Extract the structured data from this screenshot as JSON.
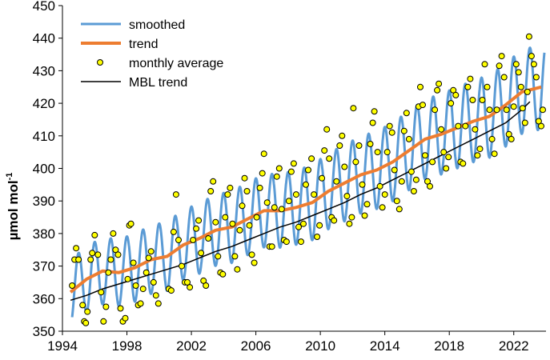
{
  "chart_data": {
    "type": "line",
    "title": "",
    "xlabel": "",
    "ylabel": "µmol mol",
    "ylabel_superscript": "-1",
    "xlim": [
      1994,
      2024
    ],
    "ylim": [
      350,
      450
    ],
    "xticks": [
      1994,
      1998,
      2002,
      2006,
      2010,
      2014,
      2018,
      2022
    ],
    "yticks": [
      350,
      360,
      370,
      380,
      390,
      400,
      410,
      420,
      430,
      440,
      450
    ],
    "grid": false,
    "legend_position": "top-left",
    "legend": [
      {
        "key": "smoothed",
        "label": "smoothed",
        "color": "#5b9bd5",
        "style": "line"
      },
      {
        "key": "trend",
        "label": "trend",
        "color": "#ed7d31",
        "style": "line"
      },
      {
        "key": "monthly",
        "label": "monthly average",
        "color": "#ffff00",
        "style": "marker"
      },
      {
        "key": "mbl",
        "label": "MBL trend",
        "color": "#000000",
        "style": "line"
      }
    ],
    "series": [
      {
        "name": "trend",
        "color": "#ed7d31",
        "x": [
          1994.5,
          1995.5,
          1996.5,
          1997.5,
          1998.5,
          1999.5,
          2000.5,
          2001.5,
          2002.5,
          2003.5,
          2004.5,
          2005.5,
          2006.5,
          2007.5,
          2008.5,
          2009.5,
          2010.5,
          2011.5,
          2012.5,
          2013.5,
          2014.5,
          2015.5,
          2016.5,
          2017.5,
          2018.5,
          2019.5,
          2020.5,
          2021.5,
          2022.5,
          2023.7
        ],
        "y": [
          362,
          366,
          368.5,
          368,
          369.5,
          372,
          373,
          376.5,
          378.5,
          381,
          382,
          384.5,
          387,
          387,
          388,
          389.5,
          393,
          395.5,
          398,
          399.5,
          402,
          405.5,
          409,
          410.5,
          412.5,
          414.5,
          416,
          419.5,
          423.5,
          425
        ]
      },
      {
        "name": "MBL trend",
        "color": "#000000",
        "x": [
          1994.5,
          1995.5,
          1996.5,
          1997.5,
          1998.5,
          1999.5,
          2000.5,
          2001.5,
          2002.5,
          2003.5,
          2004.5,
          2005.5,
          2006.5,
          2007.5,
          2008.5,
          2009.5,
          2010.5,
          2011.5,
          2012.5,
          2013.5,
          2014.5,
          2015.5,
          2016.5,
          2017.5,
          2018.5,
          2019.5,
          2020.5,
          2021.5,
          2022.5,
          2023.0
        ],
        "y": [
          359.5,
          361,
          363,
          364.5,
          366,
          367.5,
          369,
          370.5,
          372.5,
          374.5,
          376,
          378,
          380,
          382,
          383.5,
          385.5,
          387.5,
          389.5,
          392,
          394,
          396.5,
          399,
          401.5,
          404,
          406.5,
          409,
          411.5,
          414,
          418,
          420.5
        ]
      },
      {
        "name": "smoothed",
        "color": "#5b9bd5",
        "model": "trend + seasonal cycle",
        "x_range": [
          1994.6,
          2023.9
        ],
        "seasonal_amplitude_early": 10,
        "seasonal_amplitude_late": 13
      },
      {
        "name": "monthly average",
        "color": "#ffff00",
        "points": [
          [
            1994.6,
            364
          ],
          [
            1994.75,
            372
          ],
          [
            1994.85,
            375.5
          ],
          [
            1995.0,
            372
          ],
          [
            1995.25,
            358
          ],
          [
            1995.35,
            353
          ],
          [
            1995.45,
            352.5
          ],
          [
            1995.55,
            356
          ],
          [
            1995.75,
            372
          ],
          [
            1995.85,
            374
          ],
          [
            1996.0,
            379.5
          ],
          [
            1996.2,
            373.5
          ],
          [
            1996.4,
            362
          ],
          [
            1996.55,
            353
          ],
          [
            1996.7,
            357.5
          ],
          [
            1996.85,
            368
          ],
          [
            1997.0,
            372
          ],
          [
            1997.15,
            380
          ],
          [
            1997.3,
            375
          ],
          [
            1997.45,
            373.5
          ],
          [
            1997.6,
            357
          ],
          [
            1997.75,
            353
          ],
          [
            1997.9,
            354
          ],
          [
            1998.05,
            366
          ],
          [
            1998.15,
            382.5
          ],
          [
            1998.25,
            383
          ],
          [
            1998.4,
            371
          ],
          [
            1998.55,
            364
          ],
          [
            1998.7,
            358
          ],
          [
            1998.85,
            358.5
          ],
          [
            1999.0,
            363
          ],
          [
            1999.2,
            368
          ],
          [
            1999.35,
            372.5
          ],
          [
            1999.5,
            374.5
          ],
          [
            1999.65,
            365
          ],
          [
            1999.8,
            361
          ],
          [
            1999.95,
            358.5
          ],
          [
            2000.6,
            363
          ],
          [
            2000.75,
            362.5
          ],
          [
            2000.9,
            380.5
          ],
          [
            2001.05,
            392
          ],
          [
            2001.2,
            378
          ],
          [
            2001.4,
            370
          ],
          [
            2001.6,
            365
          ],
          [
            2001.75,
            365
          ],
          [
            2001.9,
            363.5
          ],
          [
            2002.1,
            378
          ],
          [
            2002.3,
            381.5
          ],
          [
            2002.45,
            384
          ],
          [
            2002.6,
            374
          ],
          [
            2002.75,
            365.5
          ],
          [
            2002.9,
            364
          ],
          [
            2003.05,
            378.5
          ],
          [
            2003.2,
            393
          ],
          [
            2003.35,
            396
          ],
          [
            2003.5,
            383.5
          ],
          [
            2003.65,
            373
          ],
          [
            2003.8,
            368
          ],
          [
            2003.95,
            367.5
          ],
          [
            2004.1,
            385
          ],
          [
            2004.25,
            392
          ],
          [
            2004.4,
            394
          ],
          [
            2004.55,
            383
          ],
          [
            2004.7,
            373
          ],
          [
            2004.85,
            369
          ],
          [
            2005.0,
            381
          ],
          [
            2005.15,
            388.5
          ],
          [
            2005.3,
            397
          ],
          [
            2005.45,
            393
          ],
          [
            2005.6,
            382.5
          ],
          [
            2005.75,
            373.5
          ],
          [
            2005.9,
            371
          ],
          [
            2006.05,
            385
          ],
          [
            2006.25,
            394
          ],
          [
            2006.4,
            398.5
          ],
          [
            2006.5,
            404.5
          ],
          [
            2006.7,
            389.5
          ],
          [
            2006.85,
            376
          ],
          [
            2007.0,
            376
          ],
          [
            2007.15,
            388
          ],
          [
            2007.3,
            397.5
          ],
          [
            2007.45,
            400
          ],
          [
            2007.6,
            387.5
          ],
          [
            2007.75,
            378
          ],
          [
            2007.9,
            377.5
          ],
          [
            2008.05,
            390
          ],
          [
            2008.2,
            399
          ],
          [
            2008.35,
            401.5
          ],
          [
            2008.5,
            392
          ],
          [
            2008.65,
            382
          ],
          [
            2008.8,
            377.5
          ],
          [
            2008.95,
            383
          ],
          [
            2009.1,
            395
          ],
          [
            2009.25,
            399.5
          ],
          [
            2009.45,
            403
          ],
          [
            2009.6,
            392
          ],
          [
            2009.8,
            379
          ],
          [
            2009.95,
            382.5
          ],
          [
            2010.1,
            397
          ],
          [
            2010.25,
            405.5
          ],
          [
            2010.4,
            412
          ],
          [
            2010.55,
            403
          ],
          [
            2010.7,
            385
          ],
          [
            2010.85,
            384
          ],
          [
            2011.0,
            396
          ],
          [
            2011.2,
            407
          ],
          [
            2011.35,
            410
          ],
          [
            2011.5,
            400.5
          ],
          [
            2011.65,
            391.5
          ],
          [
            2011.8,
            383
          ],
          [
            2011.95,
            385
          ],
          [
            2012.05,
            418.5
          ],
          [
            2012.2,
            402
          ],
          [
            2012.4,
            407
          ],
          [
            2012.6,
            395
          ],
          [
            2012.75,
            385.5
          ],
          [
            2012.9,
            389
          ],
          [
            2013.1,
            407.5
          ],
          [
            2013.25,
            414
          ],
          [
            2013.35,
            417.5
          ],
          [
            2013.55,
            405
          ],
          [
            2013.7,
            394.5
          ],
          [
            2013.85,
            388
          ],
          [
            2014.0,
            392
          ],
          [
            2014.15,
            405
          ],
          [
            2014.3,
            413
          ],
          [
            2014.45,
            411
          ],
          [
            2014.6,
            399.5
          ],
          [
            2014.75,
            390
          ],
          [
            2014.9,
            387.5
          ],
          [
            2015.05,
            396
          ],
          [
            2015.2,
            411.5
          ],
          [
            2015.35,
            417
          ],
          [
            2015.5,
            409
          ],
          [
            2015.65,
            399
          ],
          [
            2015.8,
            393
          ],
          [
            2015.95,
            396.5
          ],
          [
            2016.1,
            419
          ],
          [
            2016.2,
            425
          ],
          [
            2016.35,
            419.5
          ],
          [
            2016.5,
            404
          ],
          [
            2016.65,
            396
          ],
          [
            2016.8,
            394.5
          ],
          [
            2016.95,
            402
          ],
          [
            2017.1,
            418
          ],
          [
            2017.25,
            424
          ],
          [
            2017.35,
            426
          ],
          [
            2017.5,
            412
          ],
          [
            2017.65,
            405
          ],
          [
            2017.8,
            400
          ],
          [
            2017.95,
            403.5
          ],
          [
            2018.1,
            420
          ],
          [
            2018.25,
            424
          ],
          [
            2018.4,
            422.5
          ],
          [
            2018.55,
            413
          ],
          [
            2018.7,
            402
          ],
          [
            2018.85,
            401.5
          ],
          [
            2019.0,
            413
          ],
          [
            2019.15,
            425
          ],
          [
            2019.3,
            427.5
          ],
          [
            2019.45,
            421
          ],
          [
            2019.6,
            412
          ],
          [
            2019.75,
            404
          ],
          [
            2019.9,
            406
          ],
          [
            2020.05,
            421
          ],
          [
            2020.2,
            432
          ],
          [
            2020.35,
            425
          ],
          [
            2020.5,
            418
          ],
          [
            2020.65,
            409
          ],
          [
            2020.8,
            404.5
          ],
          [
            2020.95,
            418
          ],
          [
            2021.1,
            431.5
          ],
          [
            2021.25,
            434.5
          ],
          [
            2021.4,
            428
          ],
          [
            2021.55,
            418
          ],
          [
            2021.7,
            410.5
          ],
          [
            2021.85,
            409
          ],
          [
            2022.0,
            419
          ],
          [
            2022.15,
            432
          ],
          [
            2022.3,
            429.5
          ],
          [
            2022.45,
            425
          ],
          [
            2022.55,
            418.5
          ],
          [
            2022.7,
            414
          ],
          [
            2022.85,
            423.5
          ],
          [
            2022.95,
            440.5
          ],
          [
            2023.1,
            434.5
          ],
          [
            2023.25,
            432
          ],
          [
            2023.4,
            428
          ],
          [
            2023.55,
            414.5
          ],
          [
            2023.7,
            413
          ],
          [
            2023.8,
            418
          ]
        ]
      }
    ]
  }
}
